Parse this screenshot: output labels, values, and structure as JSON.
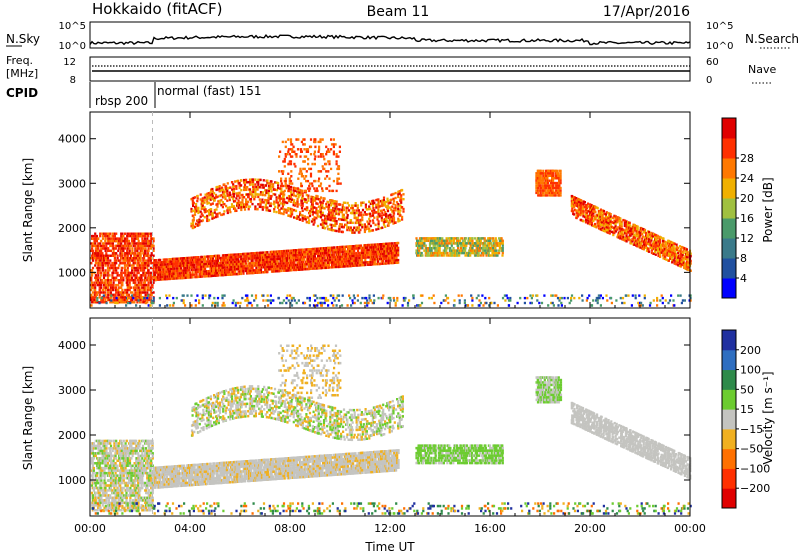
{
  "header": {
    "station": "Hokkaido (fitACF)",
    "beam": "Beam 11",
    "date": "17/Apr/2016"
  },
  "top_panels": {
    "nsky_label": "N.Sky",
    "nsearch_label": "N.Search",
    "nsky_ticks": [
      "10^5",
      "10^0"
    ],
    "nsearch_ticks": [
      "10^5",
      "10^0"
    ],
    "freq_label_1": "Freq.",
    "freq_label_2": "[MHz]",
    "freq_ticks": [
      "12",
      "8"
    ],
    "nave_label": "Nave",
    "nave_ticks": [
      "60",
      "0"
    ],
    "cpid_label": "CPID",
    "cpid_modes": [
      {
        "label": "rbsp 200",
        "start_hour": 0
      },
      {
        "label": "normal (fast) 151",
        "start_hour": 2.5
      }
    ]
  },
  "chart_data": [
    {
      "type": "heatmap",
      "name": "power",
      "ylabel": "Slant Range [km]",
      "y_ticks": [
        1000,
        2000,
        3000,
        4000
      ],
      "ylim": [
        200,
        4600
      ],
      "colorbar_label": "Power [dB]",
      "colorbar_ticks": [
        "4",
        "8",
        "12",
        "16",
        "20",
        "24",
        "28"
      ],
      "colors": [
        "#0000ff",
        "#2050a0",
        "#3a7a8a",
        "#4a9a6a",
        "#a0c040",
        "#f0b000",
        "#ff7800",
        "#ff3000",
        "#e00000"
      ]
    },
    {
      "type": "heatmap",
      "name": "velocity",
      "ylabel": "Slant Range [km]",
      "y_ticks": [
        1000,
        2000,
        3000,
        4000
      ],
      "ylim": [
        200,
        4600
      ],
      "colorbar_label": "Velocity [m s⁻¹]",
      "colorbar_ticks": [
        "200",
        "100",
        "50",
        "15",
        "−15",
        "−50",
        "−100",
        "−200"
      ],
      "colors": [
        "#2030a0",
        "#2e6ec0",
        "#2e8a4a",
        "#6ccc30",
        "#c4c4c0",
        "#f0b020",
        "#ff7000",
        "#ff3000",
        "#e00000"
      ]
    }
  ],
  "x_axis": {
    "label": "Time UT",
    "ticks": [
      "00:00",
      "04:00",
      "08:00",
      "12:00",
      "16:00",
      "20:00",
      "00:00"
    ],
    "xlim_hours": [
      0,
      24
    ]
  }
}
